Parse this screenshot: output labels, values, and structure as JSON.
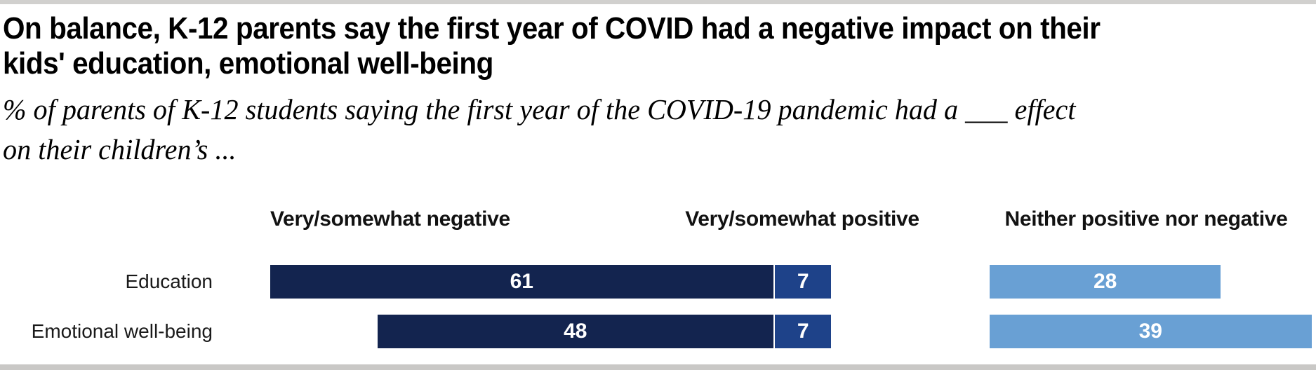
{
  "header": {
    "title_lines": [
      "On balance, K-12 parents say the first year of COVID had a negative impact on their",
      "kids' education, emotional well-being"
    ],
    "subtitle_lines": [
      "% of parents of K-12 students saying the first year of the COVID-19 pandemic had a ___ effect",
      "on their children’s ..."
    ]
  },
  "chart_data": {
    "type": "bar",
    "orientation": "horizontal",
    "categories": [
      "Education",
      "Emotional well-being"
    ],
    "series": [
      {
        "name": "Very/somewhat negative",
        "values": [
          61,
          48
        ],
        "color": "#13244f"
      },
      {
        "name": "Very/somewhat positive",
        "values": [
          7,
          7
        ],
        "color": "#1e4289"
      },
      {
        "name": "Neither positive nor negative",
        "values": [
          28,
          39
        ],
        "color": "#69a0d4"
      }
    ],
    "value_labels_shown": true,
    "xlim": [
      0,
      61
    ],
    "legend_position": "column-headers-above-bars",
    "grid": false
  },
  "colors": {
    "top_border": "#d1d0ce",
    "bottom_border": "#c9c8c6",
    "title_text": "#000000",
    "bar_value_text": "#ffffff"
  }
}
